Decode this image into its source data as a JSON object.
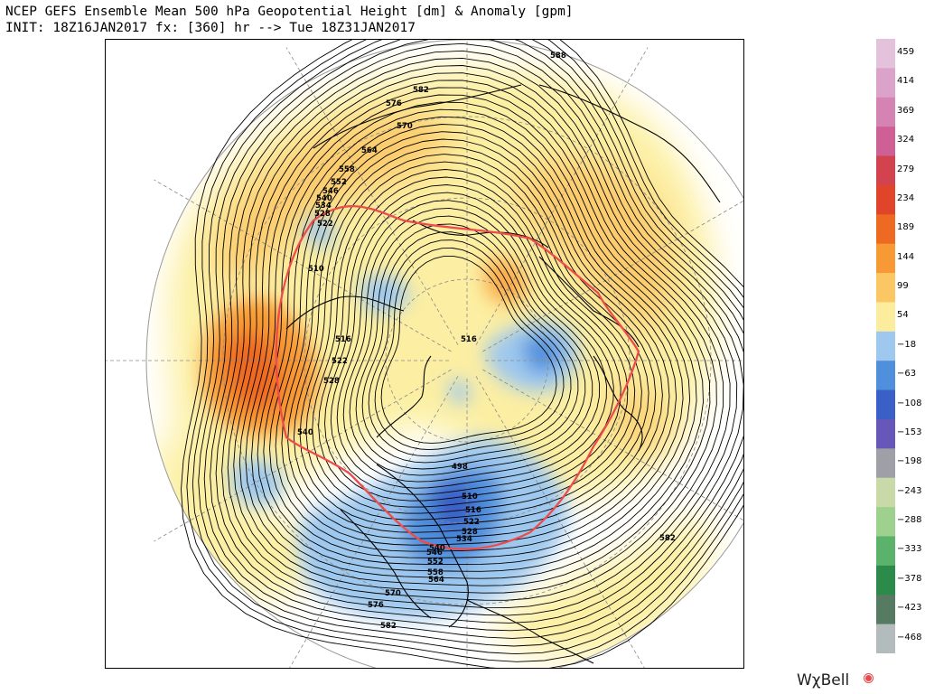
{
  "header": {
    "title_line1": "NCEP GEFS Ensemble Mean 500 hPa Geopotential Height [dm] & Anomaly [gpm]",
    "title_line2": "INIT: 18Z16JAN2017 fx: [360] hr --> Tue 18Z31JAN2017"
  },
  "colorbar": {
    "labels": [
      "459",
      "414",
      "369",
      "324",
      "279",
      "234",
      "189",
      "144",
      "99",
      "54",
      "−18",
      "−63",
      "−108",
      "−153",
      "−198",
      "−243",
      "−288",
      "−333",
      "−378",
      "−423",
      "−468"
    ],
    "colors": [
      "#e4c2dc",
      "#dba3c9",
      "#d583b2",
      "#cf6095",
      "#d3424f",
      "#e0442b",
      "#ee6a22",
      "#f79a36",
      "#fbc664",
      "#fcec9e",
      "#9ec8ee",
      "#4f8fdc",
      "#3a5fc6",
      "#6657b8",
      "#9f9fa8",
      "#c9d9a7",
      "#9ed18e",
      "#5bb36b",
      "#2c8a4a",
      "#567a62",
      "#b2bcbc"
    ]
  },
  "map": {
    "contour_labels": [
      {
        "text": "588"
      },
      {
        "text": "582"
      },
      {
        "text": "576"
      },
      {
        "text": "570"
      },
      {
        "text": "564"
      },
      {
        "text": "558"
      },
      {
        "text": "552"
      },
      {
        "text": "546"
      },
      {
        "text": "540"
      },
      {
        "text": "534"
      },
      {
        "text": "528"
      },
      {
        "text": "522"
      },
      {
        "text": "516"
      },
      {
        "text": "510"
      },
      {
        "text": "516"
      },
      {
        "text": "522"
      },
      {
        "text": "528"
      },
      {
        "text": "540"
      },
      {
        "text": "498"
      },
      {
        "text": "510"
      },
      {
        "text": "516"
      },
      {
        "text": "522"
      },
      {
        "text": "528"
      },
      {
        "text": "534"
      },
      {
        "text": "540"
      },
      {
        "text": "546"
      },
      {
        "text": "552"
      },
      {
        "text": "558"
      },
      {
        "text": "564"
      },
      {
        "text": "570"
      },
      {
        "text": "576"
      },
      {
        "text": "582"
      },
      {
        "text": "582"
      }
    ]
  },
  "brand": {
    "name": "WχBell"
  }
}
